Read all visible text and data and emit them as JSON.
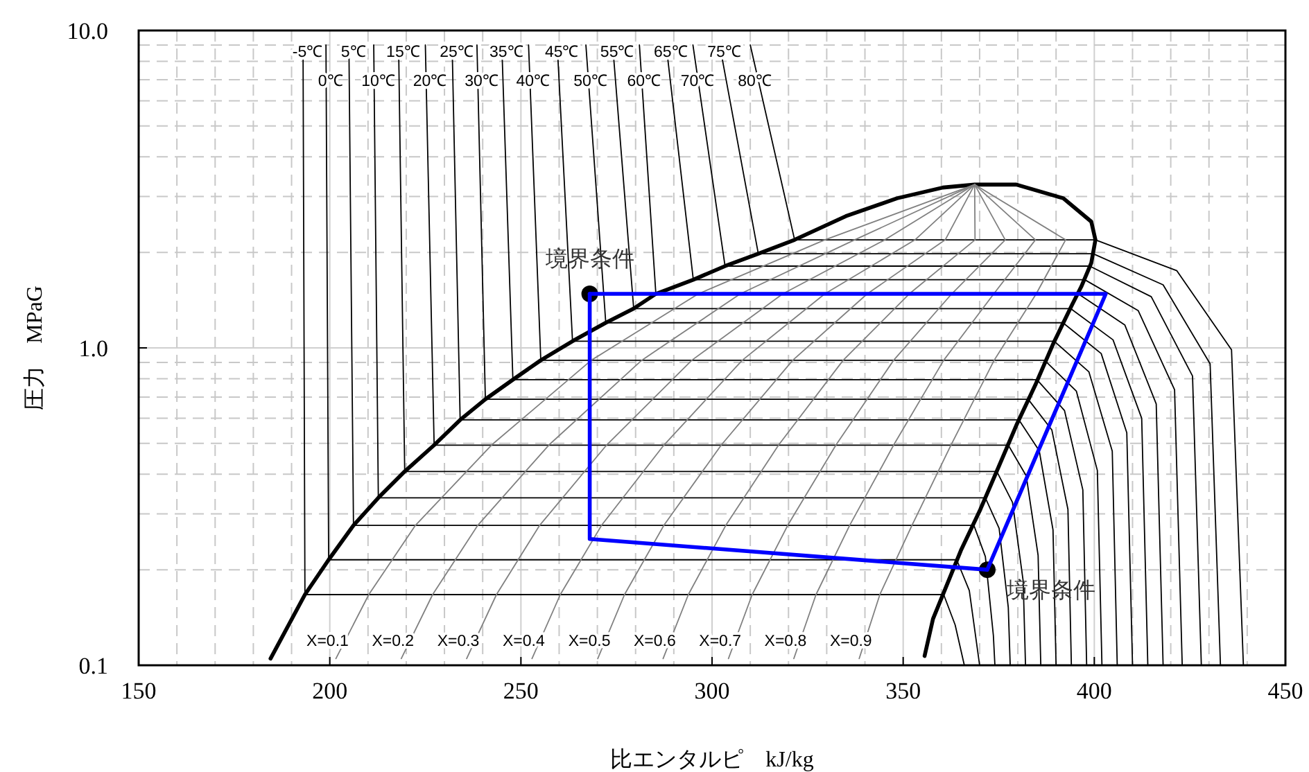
{
  "chart_data": {
    "type": "line",
    "xlabel": "比エンタルピ　kJ/kg",
    "ylabel": "圧力　MPaG",
    "log": "y",
    "grid": true,
    "xlim": [
      150,
      450
    ],
    "xticks": [
      150,
      200,
      250,
      300,
      350,
      400,
      450
    ],
    "ylim": [
      0.1,
      10
    ],
    "yticks": [
      {
        "value": 0.1,
        "label": "0.1"
      },
      {
        "value": 1,
        "label": "1.0"
      },
      {
        "value": 10,
        "label": "10.0"
      }
    ],
    "annotations": [
      {
        "text": "境界条件",
        "x": 268,
        "y": 1.48
      },
      {
        "text": "境界条件",
        "x": 372,
        "y": 0.2
      }
    ],
    "series": [
      {
        "color": "#000000",
        "x": [
          184.5,
          193.5,
          199.7,
          206.2,
          212.7,
          219.6,
          227.3,
          234.1,
          240.7,
          247.9,
          255.2,
          263.5,
          272.2,
          279.5,
          285.3,
          295.1,
          303.4,
          312.1,
          321.6,
          335,
          348.4,
          360.4,
          368.7,
          379.6,
          391.9,
          399.2,
          400.3,
          399.2,
          396.6,
          394.1,
          389.4,
          384.7,
          379.6,
          374.9,
          370.2,
          365.1,
          361.5,
          357.8,
          355.6
        ],
        "values": [
          0.105,
          0.167,
          0.215,
          0.276,
          0.337,
          0.408,
          0.494,
          0.593,
          0.689,
          0.794,
          0.914,
          1.05,
          1.2,
          1.33,
          1.48,
          1.64,
          1.81,
          1.98,
          2.19,
          2.6,
          2.96,
          3.2,
          3.27,
          3.27,
          2.96,
          2.5,
          2.19,
          1.85,
          1.56,
          1.36,
          1.04,
          0.77,
          0.57,
          0.42,
          0.31,
          0.23,
          0.18,
          0.14,
          0.107
        ]
      },
      {
        "name": "-5℃",
        "color": "#000000",
        "x": [
          193,
          193.5,
          360.6,
          363.6,
          366
        ],
        "values": [
          9,
          0.167,
          0.167,
          0.134,
          0.1
        ]
      },
      {
        "name": "0℃",
        "color": "#000000",
        "x": [
          199,
          199.7,
          364,
          367.3,
          370
        ],
        "values": [
          9,
          0.215,
          0.215,
          0.172,
          0.1
        ]
      },
      {
        "name": "5℃",
        "color": "#000000",
        "x": [
          205,
          206.2,
          368.5,
          371.5,
          373.6,
          374
        ],
        "values": [
          9,
          0.276,
          0.276,
          0.22,
          0.124,
          0.1
        ]
      },
      {
        "name": "10℃",
        "color": "#000000",
        "x": [
          211.5,
          212.7,
          371.5,
          375.1,
          377.5,
          378
        ],
        "values": [
          9,
          0.337,
          0.337,
          0.27,
          0.152,
          0.1
        ]
      },
      {
        "name": "15℃",
        "color": "#000000",
        "x": [
          218,
          219.6,
          374.5,
          378.6,
          381.4,
          382
        ],
        "values": [
          9,
          0.408,
          0.408,
          0.326,
          0.184,
          0.1
        ]
      },
      {
        "name": "20℃",
        "color": "#000000",
        "x": [
          225,
          227.3,
          377.5,
          382.2,
          385.3,
          386
        ],
        "values": [
          9,
          0.494,
          0.494,
          0.395,
          0.222,
          0.1
        ]
      },
      {
        "name": "25℃",
        "color": "#000000",
        "x": [
          232,
          234.1,
          380.3,
          385.6,
          389.2,
          390
        ],
        "values": [
          9,
          0.593,
          0.593,
          0.474,
          0.267,
          0.1
        ]
      },
      {
        "name": "30℃",
        "color": "#000000",
        "x": [
          238.5,
          240.7,
          382.7,
          388.9,
          393.1,
          394
        ],
        "values": [
          9,
          0.689,
          0.689,
          0.551,
          0.31,
          0.1
        ]
      },
      {
        "name": "35℃",
        "color": "#000000",
        "x": [
          245,
          247.9,
          385,
          392.2,
          397,
          398
        ],
        "values": [
          9,
          0.794,
          0.794,
          0.635,
          0.357,
          0.1
        ]
      },
      {
        "name": "40℃",
        "color": "#000000",
        "x": [
          252,
          255.2,
          387,
          395.3,
          400.8,
          402
        ],
        "values": [
          9,
          0.914,
          0.914,
          0.731,
          0.411,
          0.1
        ]
      },
      {
        "name": "45℃",
        "color": "#000000",
        "x": [
          259.5,
          263.5,
          389.5,
          398.6,
          404.7,
          406
        ],
        "values": [
          9,
          1.05,
          1.05,
          0.84,
          0.473,
          0.1
        ]
      },
      {
        "name": "50℃",
        "color": "#000000",
        "x": [
          267,
          272.2,
          391.8,
          401.8,
          408.5,
          410
        ],
        "values": [
          9,
          1.2,
          1.2,
          0.96,
          0.54,
          0.1
        ]
      },
      {
        "name": "55℃",
        "color": "#000000",
        "x": [
          274,
          279.5,
          393.8,
          404.9,
          412.4,
          414
        ],
        "values": [
          9,
          1.33,
          1.33,
          1.06,
          0.6,
          0.1
        ]
      },
      {
        "name": "60℃",
        "color": "#000000",
        "x": [
          281,
          285.3,
          395.8,
          408,
          416.2,
          418
        ],
        "values": [
          9,
          1.48,
          1.48,
          1.18,
          0.666,
          0.1
        ]
      },
      {
        "name": "65℃",
        "color": "#000000",
        "x": [
          288,
          295.1,
          397.5,
          411.5,
          421,
          423
        ],
        "values": [
          9,
          1.64,
          1.64,
          1.31,
          0.738,
          0.1
        ]
      },
      {
        "name": "70℃",
        "color": "#000000",
        "x": [
          295,
          303.4,
          398.8,
          414.9,
          425.7,
          428
        ],
        "values": [
          9,
          1.81,
          1.81,
          1.45,
          0.815,
          0.1
        ]
      },
      {
        "name": "75℃",
        "color": "#000000",
        "x": [
          302,
          312.1,
          399.7,
          418,
          430.3,
          433
        ],
        "values": [
          9,
          1.98,
          1.98,
          1.58,
          0.891,
          0.1
        ]
      },
      {
        "name": "80℃",
        "color": "#000000",
        "x": [
          310,
          321.6,
          400.3,
          421.6,
          435.9,
          439
        ],
        "values": [
          9,
          2.19,
          2.19,
          1.75,
          0.986,
          0.1
        ]
      },
      {
        "name": "X=0.1",
        "color": "#808080",
        "x": [
          201.6,
          210.2,
          222.4,
          242.3,
          268.4,
          296.4,
          329.5,
          368.7
        ],
        "values": [
          0.105,
          0.167,
          0.276,
          0.494,
          0.914,
          1.48,
          2.19,
          3.27
        ]
      },
      {
        "name": "X=0.2",
        "color": "#808080",
        "x": [
          218.7,
          226.9,
          238.7,
          257.3,
          281.6,
          307.4,
          337.3,
          368.7
        ],
        "values": [
          0.105,
          0.167,
          0.276,
          0.494,
          0.914,
          1.48,
          2.19,
          3.27
        ]
      },
      {
        "name": "X=0.3",
        "color": "#808080",
        "x": [
          235.8,
          243.6,
          254.9,
          272.4,
          294.7,
          318.5,
          345.2,
          368.7
        ],
        "values": [
          0.105,
          0.167,
          0.276,
          0.494,
          0.914,
          1.48,
          2.19,
          3.27
        ]
      },
      {
        "name": "X=0.4",
        "color": "#808080",
        "x": [
          252.9,
          260.3,
          271.1,
          287.4,
          307.9,
          329.5,
          353.1,
          368.7
        ],
        "values": [
          0.105,
          0.167,
          0.276,
          0.494,
          0.914,
          1.48,
          2.19,
          3.27
        ]
      },
      {
        "name": "X=0.5",
        "color": "#808080",
        "x": [
          270.1,
          277.1,
          287.4,
          302.4,
          321.1,
          340.6,
          361,
          368.7
        ],
        "values": [
          0.105,
          0.167,
          0.276,
          0.494,
          0.914,
          1.48,
          2.19,
          3.27
        ]
      },
      {
        "name": "X=0.6",
        "color": "#808080",
        "x": [
          287.2,
          293.8,
          303.6,
          317.4,
          334.3,
          351.6,
          368.8,
          368.7
        ],
        "values": [
          0.105,
          0.167,
          0.276,
          0.494,
          0.914,
          1.48,
          2.19,
          3.27
        ]
      },
      {
        "name": "X=0.7",
        "color": "#808080",
        "x": [
          304.3,
          310.5,
          319.8,
          332.4,
          347.5,
          362.7,
          376.7,
          368.7
        ],
        "values": [
          0.105,
          0.167,
          0.276,
          0.494,
          0.914,
          1.48,
          2.19,
          3.27
        ]
      },
      {
        "name": "X=0.8",
        "color": "#808080",
        "x": [
          321.4,
          327.2,
          336,
          347.5,
          360.6,
          373.7,
          384.6,
          368.7
        ],
        "values": [
          0.105,
          0.167,
          0.276,
          0.494,
          0.914,
          1.48,
          2.19,
          3.27
        ]
      },
      {
        "name": "X=0.9",
        "color": "#808080",
        "x": [
          338.5,
          343.9,
          352.3,
          362.5,
          373.8,
          384.8,
          392.5,
          368.7
        ],
        "values": [
          0.105,
          0.167,
          0.276,
          0.494,
          0.914,
          1.48,
          2.19,
          3.27
        ]
      },
      {
        "type": "scatter",
        "marker": "circle",
        "color": "#000000",
        "x": [
          268,
          372
        ],
        "values": [
          1.48,
          0.2
        ]
      },
      {
        "color": "#0000ff",
        "x": [
          268,
          268,
          372
        ],
        "values": [
          1.48,
          0.25,
          0.2
        ]
      },
      {
        "color": "#0000ff",
        "x": [
          372,
          403,
          268
        ],
        "values": [
          0.2,
          1.48,
          1.48
        ]
      }
    ]
  }
}
